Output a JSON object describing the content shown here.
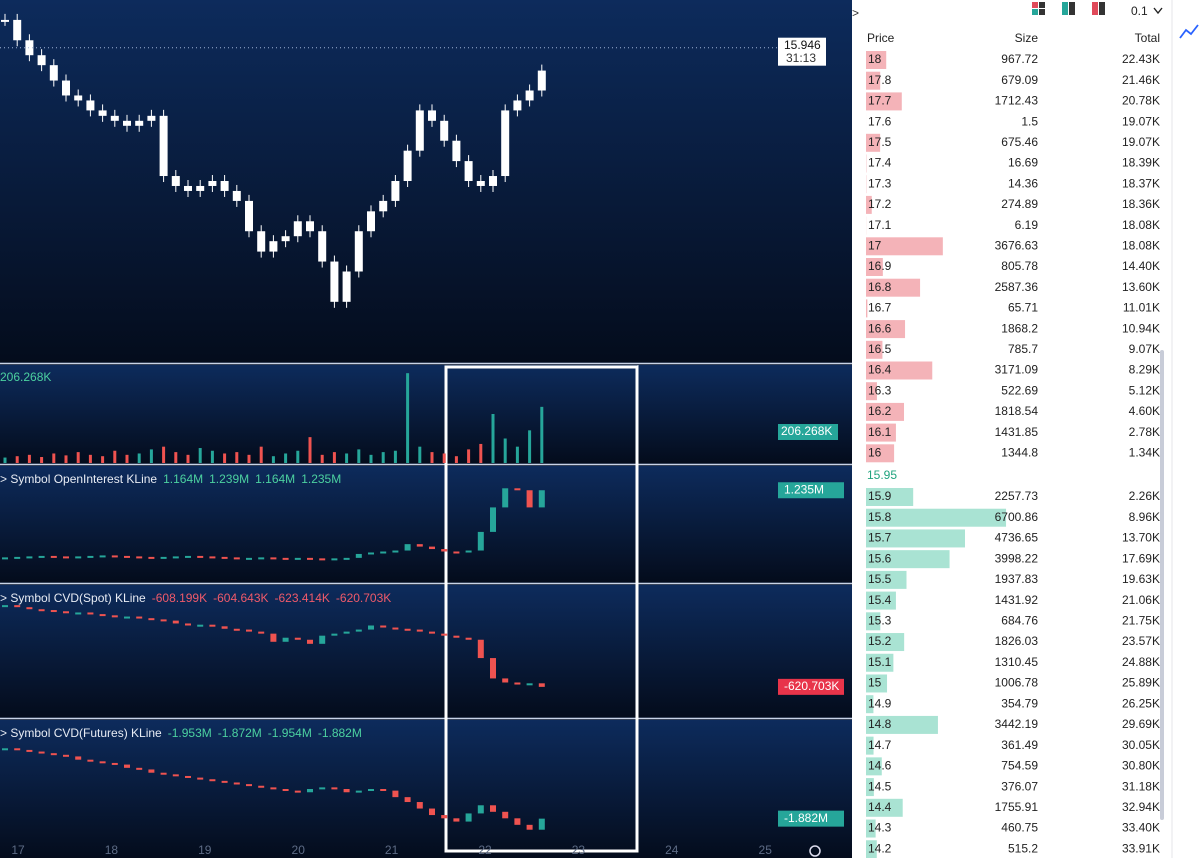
{
  "chart": {
    "x_labels": [
      "17",
      "18",
      "19",
      "20",
      "21",
      "22",
      "23",
      "24",
      "25"
    ],
    "price": {
      "closes": [
        16.56,
        16.11,
        15.78,
        15.56,
        15.22,
        14.89,
        14.78,
        14.56,
        14.44,
        14.33,
        14.22,
        14.33,
        14.44,
        13.11,
        12.89,
        12.78,
        12.89,
        13.0,
        12.78,
        12.56,
        11.89,
        11.44,
        11.67,
        11.78,
        12.11,
        11.89,
        11.22,
        10.33,
        11.0,
        11.89,
        12.33,
        12.56,
        13.0,
        13.67,
        14.56,
        14.33,
        13.89,
        13.44,
        13.0,
        12.89,
        13.11,
        14.56,
        14.78,
        15.0,
        15.44
      ],
      "ylim": [
        9.0,
        17.0
      ],
      "last_price": 15.946,
      "countdown": "31:13"
    },
    "volume": {
      "value_label": "206.268K",
      "values": [
        20,
        25,
        30,
        22,
        35,
        28,
        40,
        30,
        25,
        45,
        30,
        35,
        50,
        60,
        40,
        30,
        55,
        45,
        35,
        40,
        30,
        60,
        25,
        35,
        45,
        95,
        30,
        40,
        35,
        50,
        30,
        40,
        45,
        330,
        60,
        40,
        35,
        25,
        50,
        70,
        180,
        90,
        60,
        120,
        206.268
      ],
      "ylim": [
        0,
        360
      ]
    },
    "panes": [
      {
        "title": "Symbol OpenInterest KLine",
        "legend_values": [
          "1.164M",
          "1.239M",
          "1.164M",
          "1.235M"
        ],
        "legend_color": "#4cd1a0",
        "values": [
          1.098,
          1.099,
          1.1,
          1.101,
          1.1,
          1.099,
          1.1,
          1.101,
          1.102,
          1.101,
          1.1,
          1.099,
          1.098,
          1.099,
          1.1,
          1.101,
          1.1,
          1.099,
          1.098,
          1.097,
          1.097,
          1.098,
          1.097,
          1.096,
          1.097,
          1.096,
          1.095,
          1.096,
          1.097,
          1.105,
          1.108,
          1.11,
          1.112,
          1.125,
          1.12,
          1.115,
          1.11,
          1.108,
          1.112,
          1.15,
          1.2,
          1.239,
          1.235,
          1.2,
          1.235
        ],
        "ylim": [
          1.06,
          1.26
        ],
        "last_label": "1.235M",
        "tag_color": "#26a69a"
      },
      {
        "title": "Symbol CVD(Spot) KLine",
        "legend_values": [
          "-608.199K",
          "-604.643K",
          "-623.414K",
          "-620.703K"
        ],
        "legend_color": "#f05a6a",
        "values": [
          -420,
          -425,
          -430,
          -432,
          -435,
          -440,
          -438,
          -442,
          -445,
          -450,
          -448,
          -452,
          -455,
          -458,
          -465,
          -470,
          -468,
          -472,
          -478,
          -480,
          -485,
          -490,
          -510,
          -500,
          -505,
          -515,
          -495,
          -490,
          -485,
          -480,
          -470,
          -475,
          -478,
          -480,
          -485,
          -490,
          -495,
          -500,
          -505,
          -550,
          -600,
          -610,
          -615,
          -612,
          -620.703
        ],
        "ylim": [
          -680,
          -400
        ],
        "last_label": "-620.703K",
        "tag_color": "#e8344a"
      },
      {
        "title": "Symbol CVD(Futures) KLine",
        "legend_values": [
          "-1.953M",
          "-1.872M",
          "-1.954M",
          "-1.882M"
        ],
        "legend_color": "#4cd1a0",
        "values": [
          -1.45,
          -1.46,
          -1.47,
          -1.48,
          -1.49,
          -1.5,
          -1.52,
          -1.53,
          -1.54,
          -1.55,
          -1.57,
          -1.58,
          -1.6,
          -1.61,
          -1.62,
          -1.63,
          -1.64,
          -1.65,
          -1.66,
          -1.67,
          -1.68,
          -1.69,
          -1.7,
          -1.71,
          -1.72,
          -1.7,
          -1.69,
          -1.7,
          -1.72,
          -1.71,
          -1.7,
          -1.71,
          -1.75,
          -1.78,
          -1.82,
          -1.86,
          -1.88,
          -1.9,
          -1.85,
          -1.8,
          -1.84,
          -1.88,
          -1.92,
          -1.95,
          -1.882
        ],
        "ylim": [
          -2.05,
          -1.35
        ],
        "last_label": "-1.882M",
        "tag_color": "#26a69a"
      }
    ]
  },
  "order_book": {
    "step": "0.1",
    "headers": [
      "Price",
      "Size",
      "Total"
    ],
    "asks": [
      [
        18,
        967.72,
        "22.43K"
      ],
      [
        17.8,
        679.09,
        "21.46K"
      ],
      [
        17.7,
        1712.43,
        "20.78K"
      ],
      [
        17.6,
        1.5,
        "19.07K"
      ],
      [
        17.5,
        675.46,
        "19.07K"
      ],
      [
        17.4,
        16.69,
        "18.39K"
      ],
      [
        17.3,
        14.36,
        "18.37K"
      ],
      [
        17.2,
        274.89,
        "18.36K"
      ],
      [
        17.1,
        6.19,
        "18.08K"
      ],
      [
        17,
        3676.63,
        "18.08K"
      ],
      [
        16.9,
        805.78,
        "14.40K"
      ],
      [
        16.8,
        2587.36,
        "13.60K"
      ],
      [
        16.7,
        65.71,
        "11.01K"
      ],
      [
        16.6,
        1868.2,
        "10.94K"
      ],
      [
        16.5,
        785.7,
        "9.07K"
      ],
      [
        16.4,
        3171.09,
        "8.29K"
      ],
      [
        16.3,
        522.69,
        "5.12K"
      ],
      [
        16.2,
        1818.54,
        "4.60K"
      ],
      [
        16.1,
        1431.85,
        "2.78K"
      ],
      [
        16,
        1344.8,
        "1.34K"
      ]
    ],
    "mid_price": 15.95,
    "bids": [
      [
        15.9,
        2257.73,
        "2.26K"
      ],
      [
        15.8,
        6700.86,
        "8.96K"
      ],
      [
        15.7,
        4736.65,
        "13.70K"
      ],
      [
        15.6,
        3998.22,
        "17.69K"
      ],
      [
        15.5,
        1937.83,
        "19.63K"
      ],
      [
        15.4,
        1431.92,
        "21.06K"
      ],
      [
        15.3,
        684.76,
        "21.75K"
      ],
      [
        15.2,
        1826.03,
        "23.57K"
      ],
      [
        15.1,
        1310.45,
        "24.88K"
      ],
      [
        15,
        1006.78,
        "25.89K"
      ],
      [
        14.9,
        354.79,
        "26.25K"
      ],
      [
        14.8,
        3442.19,
        "29.69K"
      ],
      [
        14.7,
        361.49,
        "30.05K"
      ],
      [
        14.6,
        754.59,
        "30.80K"
      ],
      [
        14.5,
        376.07,
        "31.18K"
      ],
      [
        14.4,
        1755.91,
        "32.94K"
      ],
      [
        14.3,
        460.75,
        "33.40K"
      ],
      [
        14.2,
        515.2,
        "33.91K"
      ]
    ]
  }
}
